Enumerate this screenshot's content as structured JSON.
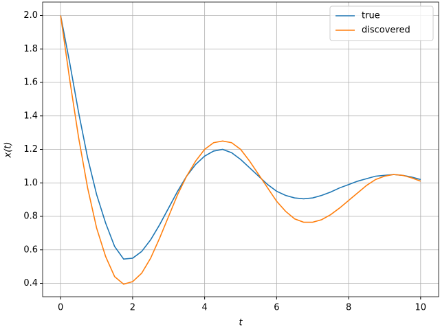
{
  "chart_data": {
    "type": "line",
    "x_label": "t",
    "y_label": "x(t)",
    "x": [
      0,
      0.25,
      0.5,
      0.75,
      1,
      1.25,
      1.5,
      1.75,
      2,
      2.25,
      2.5,
      2.75,
      3,
      3.25,
      3.5,
      3.75,
      4,
      4.25,
      4.5,
      4.75,
      5,
      5.25,
      5.5,
      5.75,
      6,
      6.25,
      6.5,
      6.75,
      7,
      7.25,
      7.5,
      7.75,
      8,
      8.25,
      8.5,
      8.75,
      9,
      9.25,
      9.5,
      9.75,
      10
    ],
    "series": [
      {
        "name": "true",
        "color": "#1f77b4",
        "values": [
          2.0,
          1.72,
          1.42,
          1.15,
          0.93,
          0.76,
          0.62,
          0.545,
          0.55,
          0.59,
          0.66,
          0.75,
          0.85,
          0.95,
          1.04,
          1.11,
          1.16,
          1.19,
          1.2,
          1.18,
          1.14,
          1.09,
          1.04,
          0.99,
          0.95,
          0.925,
          0.91,
          0.905,
          0.91,
          0.925,
          0.945,
          0.97,
          0.99,
          1.01,
          1.025,
          1.04,
          1.045,
          1.05,
          1.045,
          1.035,
          1.02
        ]
      },
      {
        "name": "discovered",
        "color": "#ff7f0e",
        "values": [
          2.0,
          1.62,
          1.27,
          0.97,
          0.73,
          0.56,
          0.44,
          0.395,
          0.41,
          0.46,
          0.55,
          0.67,
          0.8,
          0.93,
          1.04,
          1.13,
          1.2,
          1.24,
          1.25,
          1.24,
          1.2,
          1.13,
          1.05,
          0.97,
          0.89,
          0.83,
          0.785,
          0.765,
          0.765,
          0.78,
          0.81,
          0.85,
          0.895,
          0.94,
          0.985,
          1.02,
          1.04,
          1.05,
          1.045,
          1.03,
          1.01
        ]
      }
    ],
    "xlim": [
      -0.5,
      10.5
    ],
    "xticks": [
      0,
      2,
      4,
      6,
      8,
      10
    ],
    "ylim": [
      0.32,
      2.08
    ],
    "yticks": [
      0.4,
      0.6,
      0.8,
      {
        "value": 1.0,
        "label": "1.0"
      },
      1.2,
      1.4,
      1.6,
      1.8,
      {
        "value": 2.0,
        "label": "2.0"
      }
    ],
    "grid": true,
    "legend": "upper right"
  }
}
